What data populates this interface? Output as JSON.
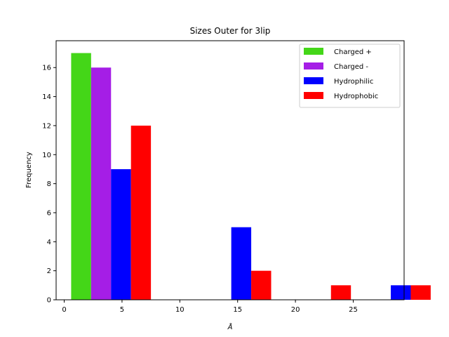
{
  "chart_data": {
    "type": "bar",
    "title": "Sizes Outer for 3lip",
    "xlabel": "Å",
    "ylabel": "Frequency",
    "xlim": [
      -0.7,
      29.4
    ],
    "ylim": [
      0,
      17.85
    ],
    "xticks": [
      0,
      5,
      10,
      15,
      20,
      25
    ],
    "yticks": [
      0,
      2,
      4,
      6,
      8,
      10,
      12,
      14,
      16
    ],
    "legend_position": "upper right",
    "bin_group_starts": [
      0.6,
      11.0,
      17.9,
      24.8
    ],
    "bin_group_width": 6.9,
    "series": [
      {
        "name": "Charged +",
        "color": "#44d618",
        "values": [
          17,
          0,
          0,
          0
        ]
      },
      {
        "name": "Charged -",
        "color": "#a51ee6",
        "values": [
          16,
          0,
          0,
          0
        ]
      },
      {
        "name": "Hydrophilic",
        "color": "#0000ff",
        "values": [
          9,
          5,
          0,
          1
        ]
      },
      {
        "name": "Hydrophobic",
        "color": "#ff0000",
        "values": [
          12,
          2,
          1,
          1
        ]
      }
    ]
  }
}
